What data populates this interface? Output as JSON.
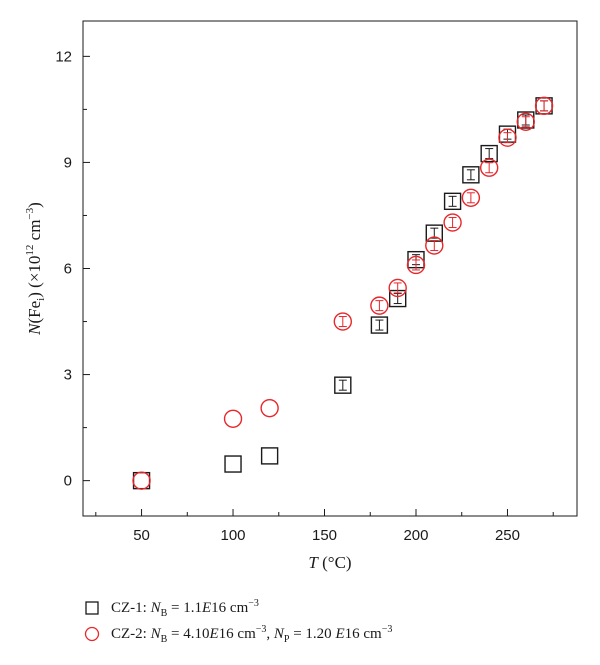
{
  "chart_data": {
    "type": "scatter",
    "xlabel_var": "T",
    "xlabel_unit": " (°C)",
    "ylabel_parts": [
      "N",
      "(Fe",
      "i",
      ") (×10",
      "12",
      " cm",
      "−3",
      ")"
    ],
    "xlim": [
      18,
      288
    ],
    "ylim": [
      -1,
      13
    ],
    "xticks": [
      50,
      100,
      150,
      200,
      250
    ],
    "yticks": [
      0,
      3,
      6,
      9,
      12
    ],
    "series": [
      {
        "name": "CZ-1: N_B = 1.1E16 cm^-3",
        "marker": "square",
        "color": "#1a1a1a",
        "points": [
          {
            "x": 50,
            "y": 0.0
          },
          {
            "x": 100,
            "y": 0.47
          },
          {
            "x": 120,
            "y": 0.7
          },
          {
            "x": 160,
            "y": 2.7
          },
          {
            "x": 180,
            "y": 4.4
          },
          {
            "x": 190,
            "y": 5.15
          },
          {
            "x": 200,
            "y": 6.25
          },
          {
            "x": 210,
            "y": 7.0
          },
          {
            "x": 220,
            "y": 7.9
          },
          {
            "x": 230,
            "y": 8.65
          },
          {
            "x": 240,
            "y": 9.25
          },
          {
            "x": 250,
            "y": 9.8
          },
          {
            "x": 260,
            "y": 10.2
          },
          {
            "x": 270,
            "y": 10.6
          }
        ]
      },
      {
        "name": "CZ-2: N_B = 4.10E16 cm^-3, N_P = 1.20 E16 cm^-3",
        "marker": "circle",
        "color": "#e8262b",
        "points": [
          {
            "x": 50,
            "y": 0.0
          },
          {
            "x": 100,
            "y": 1.75
          },
          {
            "x": 120,
            "y": 2.05
          },
          {
            "x": 160,
            "y": 4.5
          },
          {
            "x": 180,
            "y": 4.95
          },
          {
            "x": 190,
            "y": 5.45
          },
          {
            "x": 200,
            "y": 6.1
          },
          {
            "x": 210,
            "y": 6.65
          },
          {
            "x": 220,
            "y": 7.3
          },
          {
            "x": 230,
            "y": 8.0
          },
          {
            "x": 240,
            "y": 8.85
          },
          {
            "x": 250,
            "y": 9.7
          },
          {
            "x": 260,
            "y": 10.15
          },
          {
            "x": 270,
            "y": 10.6
          }
        ]
      }
    ]
  },
  "legend": {
    "cz1": {
      "prefix": "CZ-1: ",
      "n": "N",
      "sub": "B",
      "rest": " = 1.1",
      "e": "E",
      "exp": "16",
      "unit": " cm",
      "unit_sup": "−3"
    },
    "cz2": {
      "prefix": "CZ-2: ",
      "n1": "N",
      "sub1": "B",
      "rest1": " = 4.10",
      "e1": "E",
      "exp1": "16",
      "unit1": " cm",
      "unit1_sup": "−3",
      "sep": ", ",
      "n2": "N",
      "sub2": "P",
      "rest2": " = 1.20 ",
      "e2": "E",
      "exp2": "16",
      "unit2": " cm",
      "unit2_sup": "−3"
    }
  }
}
